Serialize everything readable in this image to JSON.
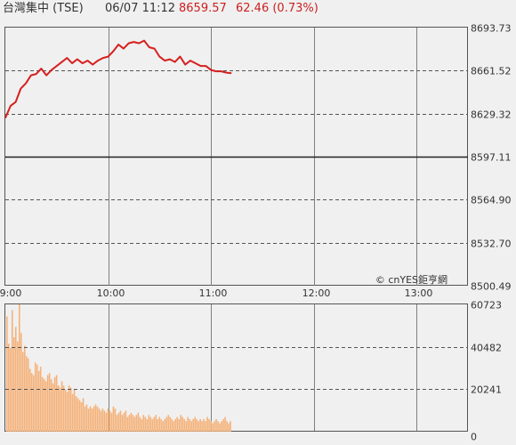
{
  "header": {
    "name": "台灣集中 (TSE)",
    "datetime": "06/07 11:12",
    "price": "8659.57",
    "change": "62.46 (0.73%)"
  },
  "watermark": "© cnYES鉅亨網",
  "colors": {
    "price_line": "#d62020",
    "volume_bar": "#f5b27a",
    "grid": "#7f7f7f",
    "background": "#f0f0f0",
    "header_up": "#cc1f1f"
  },
  "chart_data": [
    {
      "type": "line",
      "title": "",
      "xlabel": "",
      "ylabel": "",
      "x_ticks": [
        "09:00",
        "10:00",
        "11:00",
        "12:00",
        "13:00"
      ],
      "x_range": [
        "09:00",
        "13:30"
      ],
      "y_ticks": [
        "8693.73",
        "8661.52",
        "8629.32",
        "8597.11",
        "8564.90",
        "8532.70",
        "8500.49"
      ],
      "ylim": [
        8500.49,
        8693.73
      ],
      "reference_price": 8597.11,
      "series": [
        {
          "x": [
            "09:00",
            "09:03",
            "09:06",
            "09:09",
            "09:12",
            "09:15",
            "09:18",
            "09:21",
            "09:24",
            "09:27",
            "09:30",
            "09:33",
            "09:36",
            "09:39",
            "09:42",
            "09:45",
            "09:48",
            "09:51",
            "09:54",
            "09:57",
            "10:00",
            "10:03",
            "10:06",
            "10:09",
            "10:12",
            "10:15",
            "10:18",
            "10:21",
            "10:24",
            "10:27",
            "10:30",
            "10:33",
            "10:36",
            "10:39",
            "10:42",
            "10:45",
            "10:48",
            "10:51",
            "10:54",
            "10:57",
            "11:00",
            "11:03",
            "11:06",
            "11:09",
            "11:12"
          ],
          "y": [
            8626,
            8635,
            8638,
            8648,
            8652,
            8658,
            8659,
            8663,
            8658,
            8662,
            8665,
            8668,
            8671,
            8667,
            8670,
            8667,
            8669,
            8666,
            8669,
            8671,
            8672,
            8676,
            8681,
            8678,
            8682,
            8683,
            8682,
            8684,
            8679,
            8678,
            8672,
            8669,
            8670,
            8668,
            8672,
            8666,
            8669,
            8667,
            8665,
            8665,
            8662,
            8661,
            8661,
            8660,
            8659.57
          ]
        }
      ]
    },
    {
      "type": "bar",
      "title": "",
      "xlabel": "",
      "ylabel": "",
      "y_ticks": [
        "60723",
        "40482",
        "20241",
        "0"
      ],
      "ylim": [
        0,
        60723
      ],
      "series": [
        {
          "values": [
            55000,
            42000,
            40000,
            58000,
            45000,
            50000,
            43000,
            60723,
            47000,
            38000,
            41000,
            36000,
            35000,
            30000,
            28000,
            27000,
            33000,
            32000,
            29000,
            31000,
            26000,
            25000,
            24000,
            27000,
            28000,
            25000,
            23000,
            26000,
            27000,
            22000,
            21000,
            24000,
            22000,
            20000,
            19000,
            22000,
            21000,
            18000,
            20000,
            17000,
            16000,
            15000,
            14000,
            16000,
            12000,
            13000,
            11000,
            12000,
            11000,
            12000,
            13000,
            12000,
            11000,
            10000,
            11000,
            10000,
            9000,
            11000,
            10000,
            9000,
            12000,
            11000,
            8000,
            9000,
            10000,
            8000,
            9000,
            10000,
            7000,
            8000,
            9000,
            8000,
            7000,
            8000,
            9000,
            7000,
            6000,
            8000,
            7000,
            6000,
            8000,
            7000,
            6000,
            7000,
            8000,
            6000,
            7000,
            6000,
            5000,
            6000,
            7000,
            8000,
            7000,
            6000,
            5000,
            6000,
            7000,
            6000,
            8000,
            7000,
            6000,
            5000,
            7000,
            6000,
            5000,
            6000,
            7000,
            6000,
            5000,
            6000,
            5000,
            6000,
            5000,
            7000,
            6000,
            5000,
            4000,
            5000,
            6000,
            5000,
            4000,
            5000,
            6000,
            7000,
            5000,
            4000,
            5000
          ]
        }
      ]
    }
  ]
}
